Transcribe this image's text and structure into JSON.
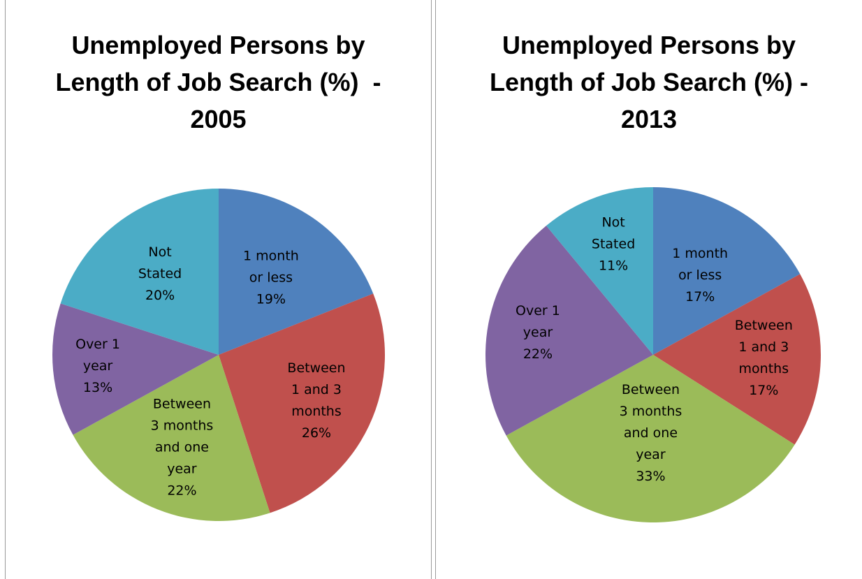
{
  "chart_data": [
    {
      "type": "pie",
      "title_lines": [
        "Unemployed Persons by",
        "Length of Job Search (%)  -",
        "2005"
      ],
      "slices": [
        {
          "key": "1m",
          "label_lines": [
            "1 month",
            "or less"
          ],
          "percent_label": "19%",
          "value": 19,
          "color": "#4f81bd"
        },
        {
          "key": "1to3",
          "label_lines": [
            "Between",
            "1 and 3",
            "months"
          ],
          "percent_label": "26%",
          "value": 26,
          "color": "#c0504d"
        },
        {
          "key": "3to12",
          "label_lines": [
            "Between",
            "3 months",
            "and one",
            "year"
          ],
          "percent_label": "22%",
          "value": 22,
          "color": "#9bbb59"
        },
        {
          "key": "over1y",
          "label_lines": [
            "Over 1",
            "year"
          ],
          "percent_label": "13%",
          "value": 13,
          "color": "#8064a2"
        },
        {
          "key": "notstated",
          "label_lines": [
            "Not",
            "Stated"
          ],
          "percent_label": "20%",
          "value": 20,
          "color": "#4bacc6"
        }
      ]
    },
    {
      "type": "pie",
      "title_lines": [
        "Unemployed Persons by",
        "Length of Job Search (%) -",
        "2013"
      ],
      "slices": [
        {
          "key": "1m",
          "label_lines": [
            "1 month",
            "or less"
          ],
          "percent_label": "17%",
          "value": 17,
          "color": "#4f81bd"
        },
        {
          "key": "1to3",
          "label_lines": [
            "Between",
            "1 and 3",
            "months"
          ],
          "percent_label": "17%",
          "value": 17,
          "color": "#c0504d"
        },
        {
          "key": "3to12",
          "label_lines": [
            "Between",
            "3 months",
            "and one",
            "year"
          ],
          "percent_label": "33%",
          "value": 33,
          "color": "#9bbb59"
        },
        {
          "key": "over1y",
          "label_lines": [
            "Over 1",
            "year"
          ],
          "percent_label": "22%",
          "value": 22,
          "color": "#8064a2"
        },
        {
          "key": "notstated",
          "label_lines": [
            "Not",
            "Stated"
          ],
          "percent_label": "11%",
          "value": 11,
          "color": "#4bacc6"
        }
      ]
    }
  ]
}
